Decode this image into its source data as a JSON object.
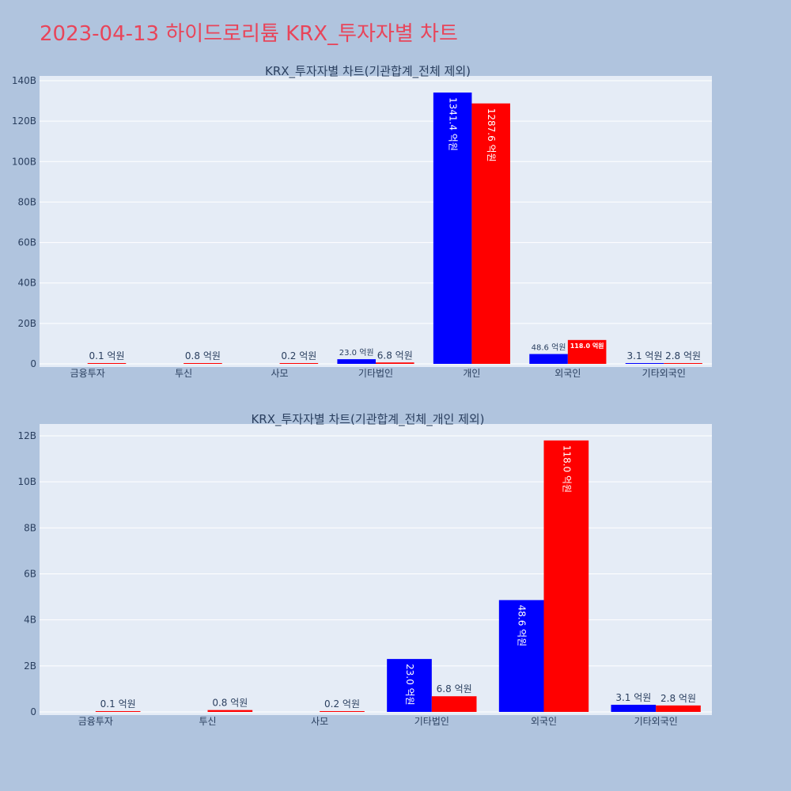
{
  "page_title": "2023-04-13 하이드로리튬 KRX_투자자별 차트",
  "colors": {
    "background": "#b0c4de",
    "plot_bg": "#e5ecf6",
    "title": "#e8455a",
    "series_a": "#0000ff",
    "series_b": "#ff0000"
  },
  "chart_data": [
    {
      "type": "bar",
      "title": "KRX_투자자별 차트(기관합계_전체 제외)",
      "categories": [
        "금융투자",
        "투신",
        "사모",
        "기타법인",
        "개인",
        "외국인",
        "기타외국인"
      ],
      "ylim": [
        0,
        140000000000
      ],
      "yticks": [
        {
          "value": 0,
          "label": "0"
        },
        {
          "value": 20000000000,
          "label": "20B"
        },
        {
          "value": 40000000000,
          "label": "40B"
        },
        {
          "value": 60000000000,
          "label": "60B"
        },
        {
          "value": 80000000000,
          "label": "80B"
        },
        {
          "value": 100000000000,
          "label": "100B"
        },
        {
          "value": 120000000000,
          "label": "120B"
        },
        {
          "value": 140000000000,
          "label": "140B"
        }
      ],
      "grid": true,
      "series": [
        {
          "color": "#0000ff",
          "values": [
            0,
            0,
            0,
            2300000000,
            134140000000,
            4860000000,
            310000000
          ],
          "labels": [
            "",
            "",
            "",
            "23.0 억원",
            "1341.4 억원",
            "48.6 억원",
            "3.1 억원"
          ]
        },
        {
          "color": "#ff0000",
          "values": [
            10000000,
            80000000,
            20000000,
            680000000,
            128760000000,
            11800000000,
            280000000
          ],
          "labels": [
            "0.1 억원",
            "0.8 억원",
            "0.2 억원",
            "6.8 억원",
            "1287.6 억원",
            "118.0 억원",
            "2.8 억원"
          ]
        }
      ]
    },
    {
      "type": "bar",
      "title": "KRX_투자자별 차트(기관합계_전체_개인 제외)",
      "categories": [
        "금융투자",
        "투신",
        "사모",
        "기타법인",
        "외국인",
        "기타외국인"
      ],
      "ylim": [
        0,
        12500000000
      ],
      "yticks": [
        {
          "value": 0,
          "label": "0"
        },
        {
          "value": 2000000000,
          "label": "2B"
        },
        {
          "value": 4000000000,
          "label": "4B"
        },
        {
          "value": 6000000000,
          "label": "6B"
        },
        {
          "value": 8000000000,
          "label": "8B"
        },
        {
          "value": 10000000000,
          "label": "10B"
        },
        {
          "value": 12000000000,
          "label": "12B"
        }
      ],
      "grid": true,
      "series": [
        {
          "color": "#0000ff",
          "values": [
            0,
            0,
            0,
            2300000000,
            4860000000,
            310000000
          ],
          "labels": [
            "",
            "",
            "",
            "23.0 억원",
            "48.6 억원",
            "3.1 억원"
          ]
        },
        {
          "color": "#ff0000",
          "values": [
            10000000,
            80000000,
            20000000,
            680000000,
            11800000000,
            280000000
          ],
          "labels": [
            "0.1 억원",
            "0.8 억원",
            "0.2 억원",
            "6.8 억원",
            "118.0 억원",
            "2.8 억원"
          ]
        }
      ]
    }
  ]
}
